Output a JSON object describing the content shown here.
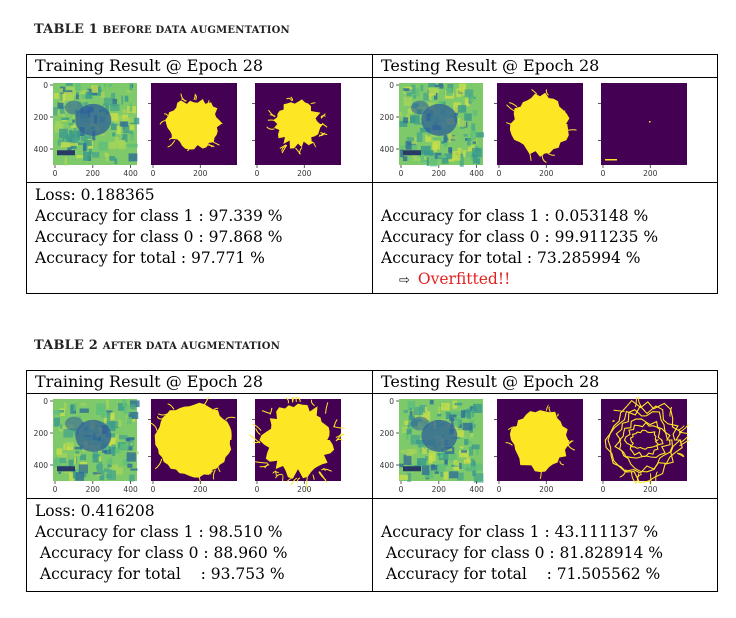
{
  "table1": {
    "caption_num": "TABLE 1",
    "caption_text": "BEFORE DATA AUGMENTATION",
    "training_header": "Training Result @ Epoch 28",
    "testing_header": "Testing Result @ Epoch 28",
    "training": {
      "loss": "Loss: 0.188365",
      "acc_class1": "Accuracy for class 1 : 97.339 %",
      "acc_class0": "Accuracy for class 0 : 97.868 %",
      "acc_total": "Accuracy for total    : 97.771 %"
    },
    "testing": {
      "acc_class1": "Accuracy for class 1 : 0.053148 %",
      "acc_class0": "Accuracy for class 0 : 99.911235 %",
      "acc_total": "Accuracy for total     : 73.285994 %",
      "note_arrow": "⇨",
      "note": "Overfitted!!"
    }
  },
  "table2": {
    "caption_num": "TABLE 2",
    "caption_text": "AFTER DATA AUGMENTATION",
    "training_header": "Training Result @ Epoch 28",
    "testing_header": "Testing Result @ Epoch 28",
    "training": {
      "loss": "Loss: 0.416208",
      "acc_class1": "Accuracy for class 1 : 98.510 %",
      "acc_class0": " Accuracy for class 0 : 88.960 %",
      "acc_total": " Accuracy for total    : 93.753 %"
    },
    "testing": {
      "acc_class1": "Accuracy for class 1 : 43.111137 %",
      "acc_class0": " Accuracy for class 0 : 81.828914 %",
      "acc_total": " Accuracy for total    : 71.505562 %"
    }
  },
  "axis_ticks": {
    "first_y": [
      "0",
      "200",
      "400"
    ],
    "first_x": [
      "0",
      "200",
      "400"
    ],
    "other_x": [
      "0",
      "200"
    ]
  },
  "colors": {
    "mask_background": "#440154",
    "mask_foreground": "#fde725",
    "overfit_note": "#e32020"
  }
}
